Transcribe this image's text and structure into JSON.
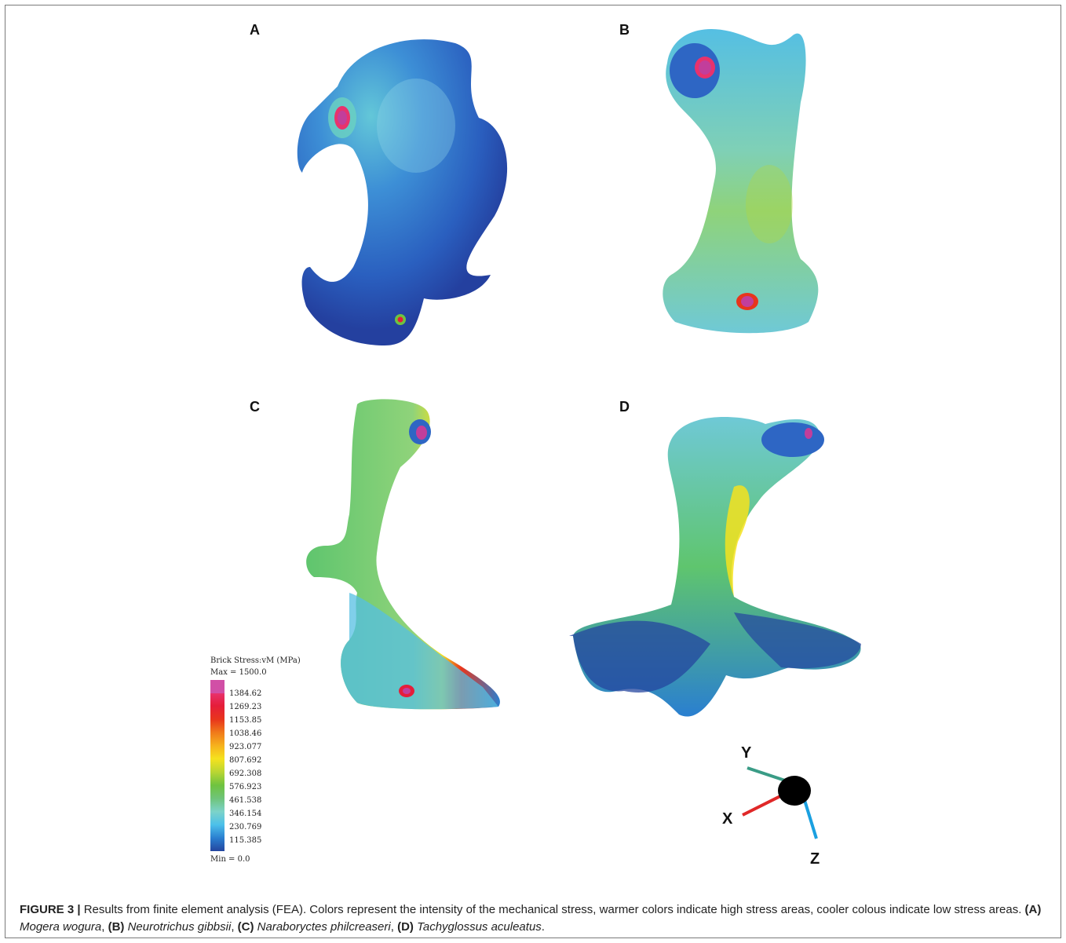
{
  "panels": [
    {
      "label": "A",
      "species": "Mogera wogura"
    },
    {
      "label": "B",
      "species": "Neurotrichus gibbsii"
    },
    {
      "label": "C",
      "species": "Naraboryctes philcreaseri"
    },
    {
      "label": "D",
      "species": "Tachyglossus aculeatus"
    }
  ],
  "legend": {
    "title": "Brick Stress:vM (MPa)",
    "max": "Max = 1500.0",
    "min": "Min = 0.0",
    "ticks": [
      "1384.62",
      "1269.23",
      "1153.85",
      "1038.46",
      "923.077",
      "807.692",
      "692.308",
      "576.923",
      "461.538",
      "346.154",
      "230.769",
      "115.385"
    ]
  },
  "axes": {
    "y": "Y",
    "x": "X",
    "z": "Z",
    "colors": {
      "y": "#3a9c86",
      "x": "#e02828",
      "z": "#1aa0e0"
    }
  },
  "caption": {
    "figure_label": "FIGURE 3 |",
    "text1": " Results from finite element analysis (FEA). Colors represent the intensity of the mechanical stress, warmer colors indicate high stress areas, cooler colous indicate low stress areas. ",
    "a_label": "(A)",
    "a_species": "Mogera wogura",
    "b_label": "(B)",
    "b_species": "Neurotrichus gibbsii",
    "c_label": "(C)",
    "c_species": "Naraboryctes philcreaseri",
    "d_label": "(D)",
    "d_species": "Tachyglossus aculeatus",
    "sep": ", ",
    "end": "."
  }
}
